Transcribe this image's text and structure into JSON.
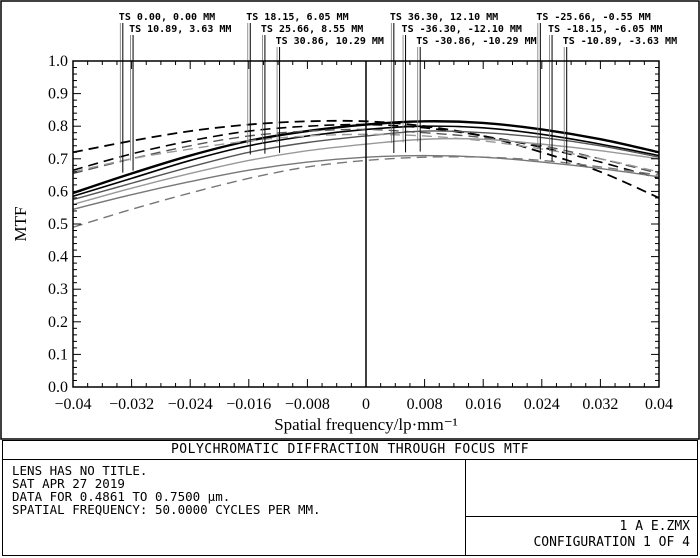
{
  "chart_data": {
    "type": "line",
    "xlabel": "Spatial frequency/lp·mm⁻¹",
    "ylabel": "MTF",
    "xlim": [
      -0.04,
      0.04
    ],
    "ylim": [
      0.0,
      1.0
    ],
    "x_ticks": [
      "−0.04",
      "−0.032",
      "−0.024",
      "−0.016",
      "−0.008",
      "0",
      "0.008",
      "0.016",
      "0.024",
      "0.032",
      "0.04"
    ],
    "y_ticks": [
      "0.0",
      "0.1",
      "0.2",
      "0.3",
      "0.4",
      "0.5",
      "0.6",
      "0.7",
      "0.8",
      "0.9",
      "1.0"
    ],
    "grid": false,
    "x": [
      -0.04,
      -0.032,
      -0.024,
      -0.016,
      -0.008,
      0,
      0.008,
      0.016,
      0.024,
      0.032,
      0.04
    ],
    "series": [
      {
        "color": "#000000",
        "dash": "solid",
        "width": 2.4,
        "values": [
          0.595,
          0.655,
          0.71,
          0.755,
          0.785,
          0.805,
          0.815,
          0.81,
          0.79,
          0.76,
          0.72
        ]
      },
      {
        "color": "#000000",
        "dash": "dashed",
        "width": 1.8,
        "values": [
          0.72,
          0.755,
          0.785,
          0.805,
          0.815,
          0.815,
          0.8,
          0.77,
          0.72,
          0.66,
          0.58
        ]
      },
      {
        "color": "#000000",
        "dash": "solid",
        "width": 1.6,
        "values": [
          0.585,
          0.64,
          0.695,
          0.74,
          0.77,
          0.79,
          0.8,
          0.795,
          0.775,
          0.745,
          0.71
        ]
      },
      {
        "color": "#000000",
        "dash": "dashed",
        "width": 1.6,
        "values": [
          0.665,
          0.715,
          0.755,
          0.785,
          0.8,
          0.805,
          0.795,
          0.77,
          0.735,
          0.69,
          0.64
        ]
      },
      {
        "color": "#555555",
        "dash": "solid",
        "width": 1.4,
        "values": [
          0.575,
          0.625,
          0.675,
          0.72,
          0.75,
          0.77,
          0.785,
          0.78,
          0.765,
          0.74,
          0.705
        ]
      },
      {
        "color": "#555555",
        "dash": "dashed",
        "width": 1.4,
        "values": [
          0.655,
          0.7,
          0.74,
          0.77,
          0.785,
          0.79,
          0.78,
          0.765,
          0.74,
          0.7,
          0.655
        ]
      },
      {
        "color": "#999999",
        "dash": "solid",
        "width": 1.4,
        "values": [
          0.56,
          0.61,
          0.655,
          0.695,
          0.725,
          0.745,
          0.76,
          0.76,
          0.745,
          0.725,
          0.7
        ]
      },
      {
        "color": "#999999",
        "dash": "dashed",
        "width": 1.4,
        "values": [
          0.66,
          0.7,
          0.73,
          0.755,
          0.77,
          0.775,
          0.77,
          0.755,
          0.73,
          0.7,
          0.66
        ]
      },
      {
        "color": "#777777",
        "dash": "solid",
        "width": 1.4,
        "values": [
          0.545,
          0.59,
          0.63,
          0.665,
          0.69,
          0.705,
          0.71,
          0.705,
          0.69,
          0.67,
          0.645
        ]
      },
      {
        "color": "#777777",
        "dash": "dashed",
        "width": 1.4,
        "values": [
          0.49,
          0.545,
          0.595,
          0.64,
          0.675,
          0.695,
          0.705,
          0.705,
          0.695,
          0.675,
          0.65
        ]
      }
    ],
    "field_markers": [
      {
        "label": "TS 0.00, 0.00 MM",
        "x": -0.0332,
        "row": 0
      },
      {
        "label": "TS 10.89, 3.63 MM",
        "x": -0.0318,
        "row": 1
      },
      {
        "label": "TS 18.15, 6.05 MM",
        "x": -0.0158,
        "row": 0
      },
      {
        "label": "TS 25.66, 8.55 MM",
        "x": -0.0138,
        "row": 1
      },
      {
        "label": "TS 30.86, 10.29 MM",
        "x": -0.0118,
        "row": 2
      },
      {
        "label": "TS 36.30, 12.10 MM",
        "x": 0.0038,
        "row": 0
      },
      {
        "label": "TS -36.30, -12.10 MM",
        "x": 0.0054,
        "row": 1
      },
      {
        "label": "TS -30.86, -10.29 MM",
        "x": 0.0074,
        "row": 2
      },
      {
        "label": "TS -25.66, -0.55 MM",
        "x": 0.0238,
        "row": 0
      },
      {
        "label": "TS -18.15, -6.05 MM",
        "x": 0.0254,
        "row": 1
      },
      {
        "label": "TS -10.89, -3.63 MM",
        "x": 0.0274,
        "row": 2
      }
    ]
  },
  "info": {
    "title": "POLYCHROMATIC DIFFRACTION THROUGH FOCUS MTF",
    "lines": [
      "LENS HAS NO TITLE.",
      "SAT APR 27 2019",
      "DATA FOR 0.4861 TO 0.7500 µm.",
      "SPATIAL FREQUENCY: 50.0000 CYCLES PER MM."
    ],
    "file": "1    A E.ZMX",
    "configuration": "CONFIGURATION 1 OF 4"
  }
}
